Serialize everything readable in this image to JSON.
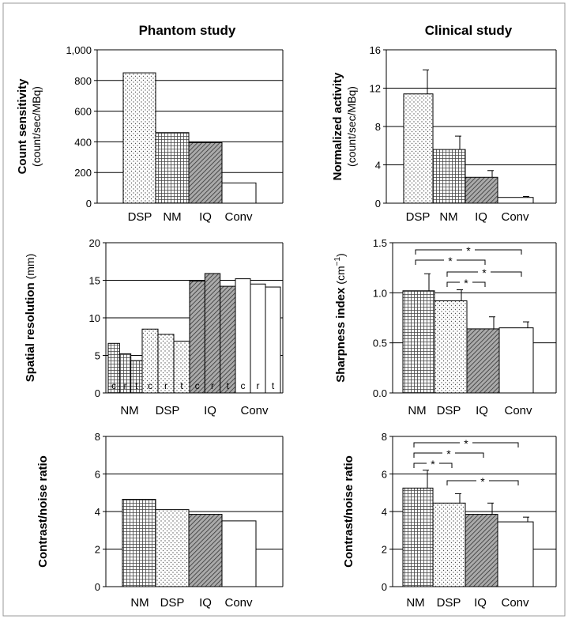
{
  "columns": {
    "left": "Phantom study",
    "right": "Clinical study"
  },
  "colors": {
    "bar_stroke": "#000000",
    "gridline": "#000000",
    "frame": "#999999"
  },
  "chart_data": [
    {
      "id": "count-sensitivity",
      "type": "bar",
      "ylabel_bold": "Count sensitivity",
      "ylabel_normal": "(count/sec/MBq)",
      "categories": [
        "DSP",
        "NM",
        "IQ",
        "Conv"
      ],
      "patterns": [
        "dots",
        "grid",
        "hatch",
        "none"
      ],
      "values": [
        850,
        460,
        395,
        132
      ],
      "ylim": [
        0,
        1000
      ],
      "yticks": [
        0,
        200,
        400,
        600,
        800,
        1000
      ],
      "ytick_labels": [
        "0",
        "200",
        "400",
        "600",
        "800",
        "1,000"
      ],
      "grid": true
    },
    {
      "id": "normalized-activity",
      "type": "bar",
      "ylabel_bold": "Normalized activity",
      "ylabel_normal": "(count/sec/MBq)",
      "categories": [
        "DSP",
        "NM",
        "IQ",
        "Conv"
      ],
      "patterns": [
        "dots",
        "grid",
        "hatch",
        "none"
      ],
      "values": [
        11.4,
        5.6,
        2.7,
        0.6
      ],
      "errors": [
        2.5,
        1.4,
        0.7,
        0.1
      ],
      "ylim": [
        0,
        16
      ],
      "yticks": [
        0,
        4,
        8,
        12,
        16
      ],
      "ytick_labels": [
        "0",
        "4",
        "8",
        "12",
        "16"
      ],
      "grid": true,
      "significance": [
        {
          "from": 0,
          "to": 1,
          "label": "*"
        },
        {
          "from": 1,
          "to": 2,
          "label": "*"
        },
        {
          "from": 2,
          "to": 3,
          "label": "*"
        }
      ]
    },
    {
      "id": "spatial-resolution",
      "type": "bar",
      "ylabel_bold": "Spatial resolution",
      "ylabel_normal": "(mm)",
      "categories": [
        "NM",
        "DSP",
        "IQ",
        "Conv"
      ],
      "patterns": [
        "grid",
        "dots",
        "hatch",
        "none"
      ],
      "subcategories": [
        "c",
        "r",
        "t"
      ],
      "values": [
        [
          6.6,
          5.2,
          4.3
        ],
        [
          8.5,
          7.8,
          6.9
        ],
        [
          14.9,
          15.9,
          14.2
        ],
        [
          15.2,
          14.5,
          14.1
        ]
      ],
      "ylim": [
        0,
        20
      ],
      "yticks": [
        0,
        5,
        10,
        15,
        20
      ],
      "ytick_labels": [
        "0",
        "5",
        "10",
        "15",
        "20"
      ],
      "grid": true
    },
    {
      "id": "sharpness-index",
      "type": "bar",
      "ylabel_bold": "Sharpness index",
      "ylabel_normal": "(cm",
      "ylabel_sup": "−1",
      "ylabel_close": ")",
      "categories": [
        "NM",
        "DSP",
        "IQ",
        "Conv"
      ],
      "patterns": [
        "grid",
        "dots",
        "hatch",
        "none"
      ],
      "values": [
        1.02,
        0.92,
        0.64,
        0.65
      ],
      "errors": [
        0.17,
        0.11,
        0.12,
        0.06
      ],
      "ylim": [
        0,
        1.5
      ],
      "yticks": [
        0,
        0.5,
        1.0,
        1.5
      ],
      "ytick_labels": [
        "0.0",
        "0.5",
        "1.0",
        "1.5"
      ],
      "grid": true,
      "significance": [
        {
          "from": 0,
          "to": 3,
          "label": "*"
        },
        {
          "from": 0,
          "to": 2,
          "label": "*"
        },
        {
          "from": 1,
          "to": 3,
          "label": "*"
        },
        {
          "from": 1,
          "to": 2,
          "label": "*"
        }
      ]
    },
    {
      "id": "contrast-noise-phantom",
      "type": "bar",
      "ylabel_bold": "Contrast/noise ratio",
      "ylabel_normal": "",
      "categories": [
        "NM",
        "DSP",
        "IQ",
        "Conv"
      ],
      "patterns": [
        "grid",
        "dots",
        "hatch",
        "none"
      ],
      "values": [
        4.65,
        4.1,
        3.85,
        3.5
      ],
      "ylim": [
        0,
        8
      ],
      "yticks": [
        0,
        2,
        4,
        6,
        8
      ],
      "ytick_labels": [
        "0",
        "2",
        "4",
        "6",
        "8"
      ],
      "grid": true
    },
    {
      "id": "contrast-noise-clinical",
      "type": "bar",
      "ylabel_bold": "Contrast/noise ratio",
      "ylabel_normal": "",
      "categories": [
        "NM",
        "DSP",
        "IQ",
        "Conv"
      ],
      "patterns": [
        "grid",
        "dots",
        "hatch",
        "none"
      ],
      "values": [
        5.25,
        4.45,
        3.85,
        3.45
      ],
      "errors": [
        0.95,
        0.5,
        0.6,
        0.25
      ],
      "ylim": [
        0,
        8
      ],
      "yticks": [
        0,
        2,
        4,
        6,
        8
      ],
      "ytick_labels": [
        "0",
        "2",
        "4",
        "6",
        "8"
      ],
      "grid": true,
      "significance": [
        {
          "from": 0,
          "to": 3,
          "label": "*"
        },
        {
          "from": 0,
          "to": 2,
          "label": "*"
        },
        {
          "from": 0,
          "to": 1,
          "label": "*"
        },
        {
          "from": 1,
          "to": 3,
          "label": "*"
        }
      ]
    }
  ]
}
